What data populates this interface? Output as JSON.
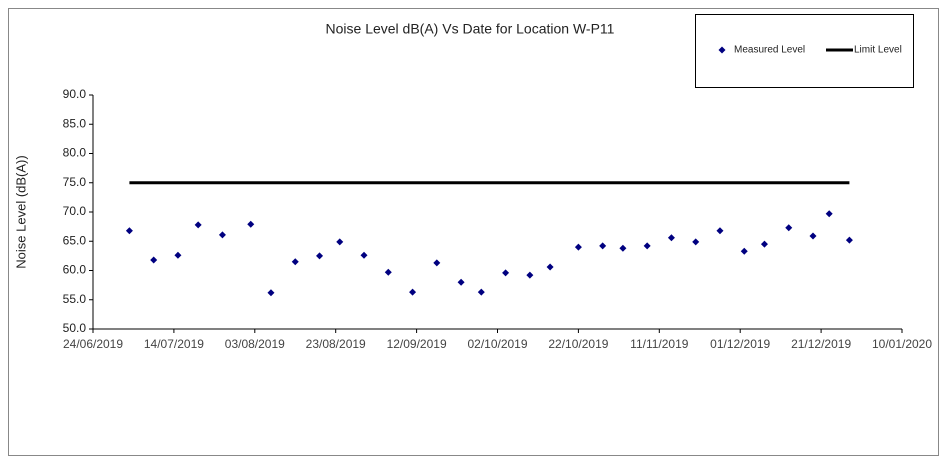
{
  "chart_data": {
    "type": "scatter",
    "title": "Noise Level dB(A) Vs Date for Location W-P11",
    "y_label": "Noise Level (dB(A))",
    "xlim": [
      "2019-06-24",
      "2020-01-10"
    ],
    "xticks": [
      {
        "value": "2019-06-24",
        "label": "24/06/2019"
      },
      {
        "value": "2019-07-14",
        "label": "14/07/2019"
      },
      {
        "value": "2019-08-03",
        "label": "03/08/2019"
      },
      {
        "value": "2019-08-23",
        "label": "23/08/2019"
      },
      {
        "value": "2019-09-12",
        "label": "12/09/2019"
      },
      {
        "value": "2019-10-02",
        "label": "02/10/2019"
      },
      {
        "value": "2019-10-22",
        "label": "22/10/2019"
      },
      {
        "value": "2019-11-11",
        "label": "11/11/2019"
      },
      {
        "value": "2019-12-01",
        "label": "01/12/2019"
      },
      {
        "value": "2019-12-21",
        "label": "21/12/2019"
      },
      {
        "value": "2020-01-10",
        "label": "10/01/2020"
      }
    ],
    "ylim": [
      50,
      90
    ],
    "yticks": [
      {
        "value": 50,
        "label": "50.0"
      },
      {
        "value": 55,
        "label": "55.0"
      },
      {
        "value": 60,
        "label": "60.0"
      },
      {
        "value": 65,
        "label": "65.0"
      },
      {
        "value": 70,
        "label": "70.0"
      },
      {
        "value": 75,
        "label": "75.0"
      },
      {
        "value": 80,
        "label": "80.0"
      },
      {
        "value": 85,
        "label": "85.0"
      },
      {
        "value": 90,
        "label": "90.0"
      }
    ],
    "grid": false,
    "legend": "top-right",
    "series": [
      {
        "name": "Measured Level",
        "color": "#000080",
        "marker": "diamond",
        "x": [
          "2019-07-03",
          "2019-07-09",
          "2019-07-15",
          "2019-07-20",
          "2019-07-26",
          "2019-08-02",
          "2019-08-07",
          "2019-08-13",
          "2019-08-19",
          "2019-08-24",
          "2019-08-30",
          "2019-09-05",
          "2019-09-11",
          "2019-09-17",
          "2019-09-23",
          "2019-09-28",
          "2019-10-04",
          "2019-10-10",
          "2019-10-15",
          "2019-10-22",
          "2019-10-28",
          "2019-11-02",
          "2019-11-08",
          "2019-11-14",
          "2019-11-20",
          "2019-11-26",
          "2019-12-02",
          "2019-12-07",
          "2019-12-13",
          "2019-12-19",
          "2019-12-23",
          "2019-12-28"
        ],
        "values": [
          66.8,
          61.8,
          62.6,
          67.8,
          66.1,
          67.9,
          56.2,
          61.5,
          62.5,
          64.9,
          62.6,
          59.7,
          56.3,
          61.3,
          58.0,
          56.3,
          59.6,
          59.2,
          60.6,
          64.0,
          64.2,
          63.8,
          64.2,
          65.6,
          64.9,
          66.8,
          63.3,
          64.5,
          67.3,
          65.9,
          69.7,
          65.2
        ]
      },
      {
        "name": "Limit Level",
        "color": "#000000",
        "marker": "line",
        "x": [
          "2019-07-03",
          "2019-12-28"
        ],
        "values": [
          75,
          75
        ]
      }
    ]
  }
}
